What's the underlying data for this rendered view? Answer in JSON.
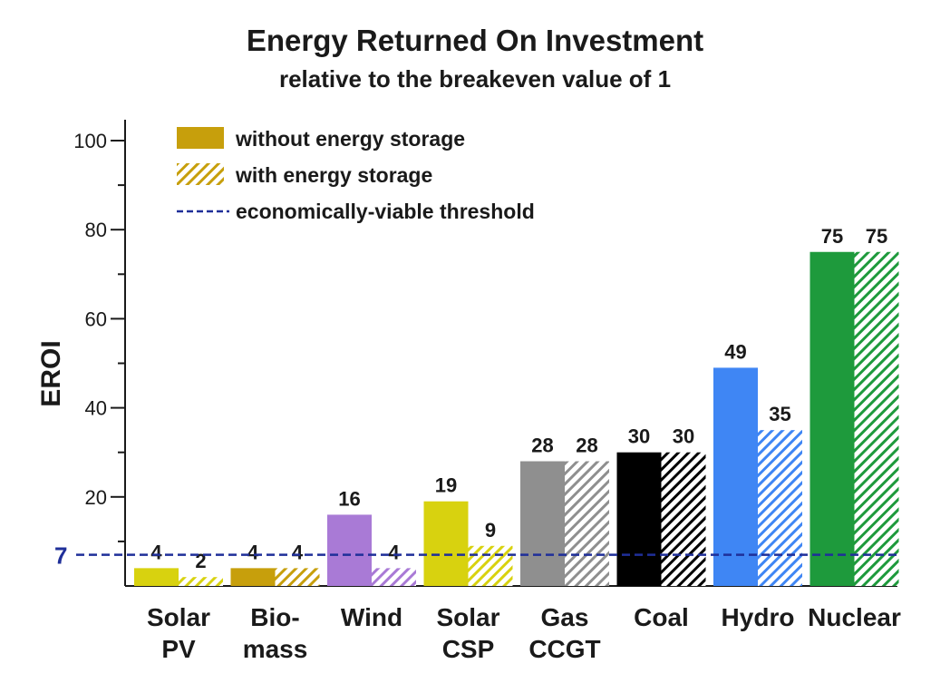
{
  "chart_data": {
    "type": "bar",
    "title": "Energy Returned On Investment",
    "subtitle": "relative to the breakeven value of 1",
    "ylabel": "EROI",
    "xlabel": "",
    "ylim": [
      0,
      100
    ],
    "yticks": [
      20,
      40,
      60,
      80,
      100
    ],
    "categories": [
      [
        "Solar",
        "PV"
      ],
      [
        "Bio-",
        "mass"
      ],
      [
        "Wind"
      ],
      [
        "Solar",
        "CSP"
      ],
      [
        "Gas",
        "CCGT"
      ],
      [
        "Coal"
      ],
      [
        "Hydro"
      ],
      [
        "Nuclear"
      ]
    ],
    "category_colors": [
      "#d8d20f",
      "#c79f0c",
      "#a97ad6",
      "#d8d20f",
      "#8f8f8f",
      "#000000",
      "#3f86f4",
      "#1e9a3c"
    ],
    "series": [
      {
        "name": "without energy storage",
        "values": [
          4,
          4,
          16,
          19,
          28,
          30,
          49,
          75
        ],
        "style": "solid"
      },
      {
        "name": "with energy storage",
        "values": [
          2,
          4,
          4,
          9,
          28,
          30,
          35,
          75
        ],
        "style": "hatched"
      }
    ],
    "threshold": {
      "name": "economically-viable threshold",
      "value": 7,
      "label": "7",
      "color": "#1f2f99"
    },
    "legend": {
      "placement": "top-left",
      "swatch_color": "#c79f0c",
      "items": [
        "without energy storage",
        "with energy storage",
        "economically-viable threshold"
      ]
    },
    "grid": false
  }
}
